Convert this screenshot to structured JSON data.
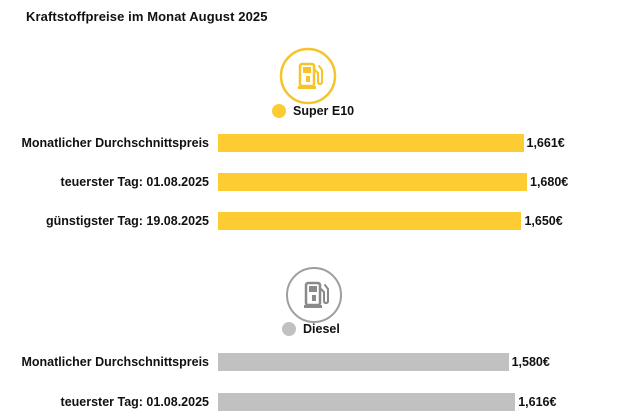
{
  "title": "Kraftstoffpreise im Monat August 2025",
  "colors": {
    "super": "#FDCC32",
    "diesel": "#C1C1C1",
    "icon_super_ring": "#F6C42A",
    "icon_diesel_ring": "#9E9E9E"
  },
  "icons": {
    "super": "fuel-pump-icon",
    "diesel": "fuel-pump-icon"
  },
  "chart_data": {
    "type": "bar",
    "orientation": "horizontal",
    "title": "Kraftstoffpreise im Monat August 2025",
    "xlabel": "",
    "ylabel": "",
    "unit": "€",
    "xlim": [
      0,
      1.68
    ],
    "grid": false,
    "series": [
      {
        "name": "Super E10",
        "color": "#FDCC32",
        "categories": [
          "Monatlicher Durchschnittspreis",
          "teuerster Tag: 01.08.2025",
          "günstigster Tag: 19.08.2025"
        ],
        "values": [
          1.661,
          1.68,
          1.65
        ],
        "labels": [
          "1,661€",
          "1,680€",
          "1,650€"
        ]
      },
      {
        "name": "Diesel",
        "color": "#C1C1C1",
        "categories": [
          "Monatlicher Durchschnittspreis",
          "teuerster Tag: 01.08.2025"
        ],
        "values": [
          1.58,
          1.616
        ],
        "labels": [
          "1,580€",
          "1,616€"
        ]
      }
    ]
  }
}
